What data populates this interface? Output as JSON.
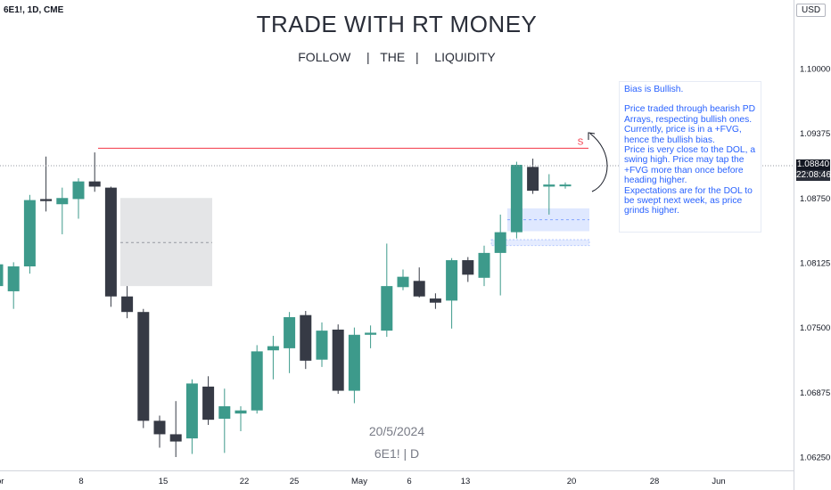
{
  "header": {
    "symbol": "6E1!, 1D, CME"
  },
  "title": "TRADE WITH RT MONEY",
  "subtitle": "FOLLOW   |  THE  |   LIQUIDITY",
  "watermark": {
    "date": "20/5/2024",
    "symbol": "6E1! | D"
  },
  "currency_badge": "USD",
  "last_price": {
    "value": "1.08840",
    "countdown": "22:08:46"
  },
  "liquidity_marker": "S",
  "note_lines": [
    "Bias is Bullish.",
    "",
    "Price traded through bearish PD Arrays, respecting bullish ones.",
    "Currently, price is in a +FVG, hence the bullish bias.",
    "Price is very close to the DOL, a swing high.  Price may tap the +FVG more than once before heading higher.",
    "Expectations are for the DOL to be swept next week, as price grinds higher."
  ],
  "colors": {
    "bull": "#26a69a",
    "bull_body": "#3d9a8b",
    "bear": "#363a45",
    "dol_line": "#f23645",
    "fvg": "#2962ff",
    "bearish_zone": "#787b86",
    "text_note": "#2962ff"
  },
  "chart_data": {
    "type": "candlestick",
    "ylim": [
      1.0619,
      1.1036
    ],
    "y_ticks": [
      "1.10000",
      "1.09375",
      "1.08750",
      "1.08125",
      "1.07500",
      "1.06875",
      "1.06250"
    ],
    "x_ticks": [
      "Apr",
      "8",
      "15",
      "22",
      "25",
      "May",
      "6",
      "13",
      "20",
      "28",
      "Jun"
    ],
    "candles": [
      {
        "o": 1.079,
        "h": 1.0842,
        "l": 1.0785,
        "c": 1.0811
      },
      {
        "o": 1.0785,
        "h": 1.0813,
        "l": 1.0768,
        "c": 1.0809
      },
      {
        "o": 1.0809,
        "h": 1.0878,
        "l": 1.0802,
        "c": 1.0873
      },
      {
        "o": 1.0874,
        "h": 1.0915,
        "l": 1.0862,
        "c": 1.0872
      },
      {
        "o": 1.0869,
        "h": 1.0885,
        "l": 1.084,
        "c": 1.0875
      },
      {
        "o": 1.0874,
        "h": 1.0894,
        "l": 1.0855,
        "c": 1.0891
      },
      {
        "o": 1.0891,
        "h": 1.0919,
        "l": 1.0881,
        "c": 1.0886
      },
      {
        "o": 1.0885,
        "h": 1.0886,
        "l": 1.077,
        "c": 1.078
      },
      {
        "o": 1.078,
        "h": 1.079,
        "l": 1.0759,
        "c": 1.0765
      },
      {
        "o": 1.0765,
        "h": 1.0768,
        "l": 1.0653,
        "c": 1.066
      },
      {
        "o": 1.066,
        "h": 1.0665,
        "l": 1.0634,
        "c": 1.0647
      },
      {
        "o": 1.0647,
        "h": 1.0679,
        "l": 1.0625,
        "c": 1.064
      },
      {
        "o": 1.0643,
        "h": 1.07,
        "l": 1.0628,
        "c": 1.0696
      },
      {
        "o": 1.0693,
        "h": 1.0703,
        "l": 1.0656,
        "c": 1.0661
      },
      {
        "o": 1.0662,
        "h": 1.0691,
        "l": 1.0629,
        "c": 1.0674
      },
      {
        "o": 1.0667,
        "h": 1.0674,
        "l": 1.065,
        "c": 1.067
      },
      {
        "o": 1.067,
        "h": 1.0733,
        "l": 1.0667,
        "c": 1.0727
      },
      {
        "o": 1.0728,
        "h": 1.0742,
        "l": 1.07,
        "c": 1.0732
      },
      {
        "o": 1.073,
        "h": 1.0765,
        "l": 1.0706,
        "c": 1.076
      },
      {
        "o": 1.0762,
        "h": 1.0766,
        "l": 1.071,
        "c": 1.0718
      },
      {
        "o": 1.0719,
        "h": 1.0755,
        "l": 1.0712,
        "c": 1.0747
      },
      {
        "o": 1.0748,
        "h": 1.0753,
        "l": 1.0686,
        "c": 1.0689
      },
      {
        "o": 1.0689,
        "h": 1.075,
        "l": 1.0677,
        "c": 1.0743
      },
      {
        "o": 1.0743,
        "h": 1.0752,
        "l": 1.073,
        "c": 1.0745
      },
      {
        "o": 1.0747,
        "h": 1.0831,
        "l": 1.0741,
        "c": 1.079
      },
      {
        "o": 1.0789,
        "h": 1.0806,
        "l": 1.0786,
        "c": 1.0799
      },
      {
        "o": 1.0795,
        "h": 1.0808,
        "l": 1.0779,
        "c": 1.078
      },
      {
        "o": 1.0778,
        "h": 1.0783,
        "l": 1.0768,
        "c": 1.0774
      },
      {
        "o": 1.0776,
        "h": 1.0817,
        "l": 1.0749,
        "c": 1.0815
      },
      {
        "o": 1.0815,
        "h": 1.0818,
        "l": 1.0794,
        "c": 1.0801
      },
      {
        "o": 1.0798,
        "h": 1.0829,
        "l": 1.079,
        "c": 1.0822
      },
      {
        "o": 1.0822,
        "h": 1.0859,
        "l": 1.0781,
        "c": 1.0842
      },
      {
        "o": 1.0842,
        "h": 1.091,
        "l": 1.0836,
        "c": 1.0907
      },
      {
        "o": 1.0905,
        "h": 1.0913,
        "l": 1.0879,
        "c": 1.0882
      },
      {
        "o": 1.0886,
        "h": 1.0898,
        "l": 1.0859,
        "c": 1.0888
      },
      {
        "o": 1.0888,
        "h": 1.089,
        "l": 1.0884,
        "c": 1.0888
      }
    ],
    "dol_level": 1.0923,
    "bearish_pd_array": {
      "y_top": 1.0875,
      "y_bottom": 1.079,
      "y_mid": 1.0832
    },
    "fvg_zones": [
      {
        "y_top": 1.0865,
        "y_bottom": 1.0843,
        "y_mid": 1.0854
      },
      {
        "y_top": 1.0834,
        "y_bottom": 1.083
      }
    ]
  }
}
